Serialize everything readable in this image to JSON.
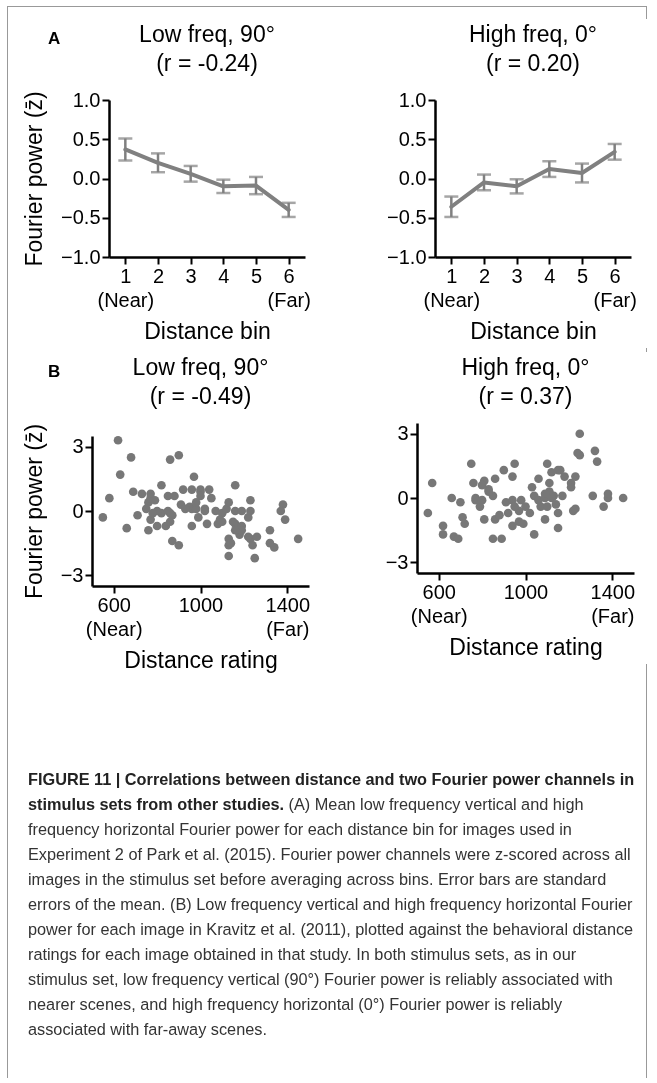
{
  "chart_data": [
    {
      "type": "line",
      "title": "Low freq, 90°",
      "subtitle": "(r = -0.24)",
      "xlabel": "Distance bin",
      "ylabel": "Fourier power (z̄)",
      "annotations": [
        "A"
      ],
      "color": "#808080",
      "x": [
        1,
        2,
        3,
        4,
        5,
        6
      ],
      "values": [
        0.37,
        0.2,
        0.06,
        -0.1,
        -0.09,
        -0.4
      ],
      "errors": [
        0.14,
        0.12,
        0.1,
        0.085,
        0.11,
        0.09
      ],
      "xlim": [
        0.5,
        6.5
      ],
      "xticks": [
        {
          "value": 1,
          "label": "1\n(Near)"
        },
        2,
        3,
        4,
        5,
        {
          "value": 6,
          "label": "6\n(Far)"
        }
      ],
      "ylim": [
        -1,
        1
      ],
      "yticks": [
        {
          "value": 1,
          "label": "1.0"
        },
        {
          "value": 0.5,
          "label": "0.5"
        },
        {
          "value": 0,
          "label": "0.0"
        },
        {
          "value": -0.5,
          "label": "−0.5"
        },
        {
          "value": -1,
          "label": "−1.0"
        }
      ]
    },
    {
      "type": "line",
      "title": "High freq, 0°",
      "subtitle": "(r = 0.20)",
      "xlabel": "Distance bin",
      "color": "#808080",
      "x": [
        1,
        2,
        3,
        4,
        5,
        6
      ],
      "values": [
        -0.36,
        -0.05,
        -0.1,
        0.12,
        0.07,
        0.34
      ],
      "errors": [
        0.13,
        0.1,
        0.09,
        0.1,
        0.12,
        0.1
      ],
      "xlim": [
        0.5,
        6.5
      ],
      "xticks": [
        {
          "value": 1,
          "label": "1\n(Near)"
        },
        2,
        3,
        4,
        5,
        {
          "value": 6,
          "label": "6\n(Far)"
        }
      ],
      "ylim": [
        -1,
        1
      ],
      "yticks": [
        {
          "value": 1,
          "label": "1.0"
        },
        {
          "value": 0.5,
          "label": "0.5"
        },
        {
          "value": 0,
          "label": "0.0"
        },
        {
          "value": -0.5,
          "label": "−0.5"
        },
        {
          "value": -1,
          "label": "−1.0"
        }
      ]
    },
    {
      "type": "scatter",
      "title": "Low freq, 90°",
      "subtitle": "(r = -0.49)",
      "xlabel": "Distance rating",
      "ylabel": "Fourier power (z̄)",
      "annotations": [
        "B"
      ],
      "color": "#777777",
      "x": [
        620,
        680,
        630,
        580,
        550,
        660,
        690,
        730,
        710,
        760,
        770,
        820,
        760,
        750,
        770,
        800,
        840,
        860,
        870,
        900,
        860,
        900,
        970,
        920,
        960,
        1000,
        1040,
        1050,
        1000,
        910,
        950,
        960,
        980,
        990,
        1020,
        960,
        1030,
        1080,
        1070,
        1100,
        1120,
        1130,
        1160,
        1160,
        1190,
        1230,
        1230,
        1220,
        1160,
        1190,
        1180,
        1130,
        1130,
        1140,
        1130,
        1230,
        1240,
        1190,
        1250,
        1260,
        1320,
        1320,
        1340,
        1380,
        1370,
        1390,
        1450,
        770,
        790,
        850,
        880,
        820,
        860,
        870,
        930,
        1020,
        1090,
        1100,
        1150,
        1160,
        1220,
        1000,
        980,
        800,
        780,
        850
      ],
      "values": [
        3.3,
        2.5,
        1.7,
        0.6,
        -0.3,
        -0.8,
        0.9,
        0.8,
        -0.2,
        -0.9,
        0.8,
        1.2,
        0.4,
        0.1,
        -0.4,
        -0.7,
        -0.7,
        -0.5,
        -1.4,
        -1.6,
        2.4,
        2.6,
        1.6,
        1.0,
        1.0,
        1.0,
        1.0,
        0.6,
        0.9,
        0.3,
        0.2,
        0.1,
        0.1,
        -0.3,
        0.1,
        -0.7,
        -0.6,
        -0.6,
        0,
        -0.1,
        0.1,
        0.4,
        1.2,
        0,
        0,
        0,
        0.5,
        -0.3,
        -0.6,
        -0.7,
        -1.1,
        -1.3,
        -1.6,
        -1.5,
        -2.1,
        -1.3,
        -1.6,
        -0.9,
        -2.2,
        -1.2,
        -0.9,
        -1.5,
        -1.7,
        0.3,
        0,
        -0.4,
        -1.3,
        0.6,
        0.5,
        0.7,
        0.7,
        -0.1,
        -0.1,
        -0.2,
        0.1,
        0,
        -0.4,
        -0.5,
        -0.5,
        -0.9,
        -1.2,
        0.7,
        0.4,
        0,
        -0.1,
        0
      ],
      "xlim": [
        500,
        1500
      ],
      "xticks": [
        {
          "value": 600,
          "label": "600\n(Near)"
        },
        {
          "value": 1000,
          "label": "1000"
        },
        {
          "value": 1400,
          "label": "1400\n(Far)"
        }
      ],
      "ylim": [
        -3.5,
        3.5
      ],
      "yticks": [
        {
          "value": 3,
          "label": "3"
        },
        {
          "value": 0,
          "label": "0"
        },
        {
          "value": -3,
          "label": "−3"
        }
      ]
    },
    {
      "type": "scatter",
      "title": "High freq, 0°",
      "subtitle": "(r = 0.37)",
      "xlabel": "Distance rating",
      "color": "#777777",
      "x": [
        1250,
        1240,
        1250,
        1320,
        1330,
        1100,
        950,
        750,
        900,
        940,
        760,
        810,
        860,
        830,
        800,
        850,
        570,
        660,
        700,
        550,
        620,
        620,
        670,
        690,
        710,
        720,
        770,
        790,
        770,
        810,
        860,
        880,
        850,
        890,
        910,
        940,
        920,
        940,
        970,
        990,
        980,
        1000,
        1020,
        970,
        1040,
        1090,
        1030,
        1060,
        1040,
        1060,
        1070,
        1090,
        1110,
        1120,
        1150,
        1160,
        1180,
        1210,
        1210,
        1230,
        1150,
        1150,
        1130,
        1120,
        1140,
        1170,
        1100,
        1220,
        1230,
        1310,
        1360,
        1380,
        1380,
        1450,
        830,
        800,
        950,
        1110,
        1090
      ],
      "values": [
        3.0,
        2.1,
        2.0,
        2.2,
        1.7,
        1.6,
        1.6,
        1.6,
        1.3,
        1.0,
        0.7,
        0.8,
        0.9,
        0.4,
        0.6,
        0.1,
        0.7,
        0,
        -0.2,
        -0.7,
        -1.3,
        -1.7,
        -1.8,
        -1.9,
        -0.9,
        -1.2,
        0,
        -0.4,
        -0.1,
        -1.0,
        -1.0,
        -0.8,
        -1.9,
        -1.9,
        -0.2,
        -0.1,
        -0.7,
        -1.3,
        -1.1,
        -1.2,
        -0.1,
        -0.4,
        -0.7,
        -0.6,
        -1.7,
        -1.0,
        0.5,
        0.9,
        0.1,
        -0.1,
        -0.4,
        0,
        0.7,
        1.2,
        1.3,
        1.3,
        1.0,
        0.7,
        0.5,
        1.0,
        -0.7,
        -1.4,
        0.1,
        0,
        -0.3,
        0.1,
        -0.4,
        -0.6,
        -0.5,
        0.1,
        -0.4,
        0,
        0.2,
        0,
        0.3,
        -0.1,
        -0.4,
        0.3,
        0.2
      ],
      "xlim": [
        500,
        1500
      ],
      "xticks": [
        {
          "value": 600,
          "label": "600\n(Near)"
        },
        {
          "value": 1000,
          "label": "1000"
        },
        {
          "value": 1400,
          "label": "1400\n(Far)"
        }
      ],
      "ylim": [
        -3.5,
        3.5
      ],
      "yticks": [
        {
          "value": 3,
          "label": "3"
        },
        {
          "value": 0,
          "label": "0"
        },
        {
          "value": -3,
          "label": "−3"
        }
      ]
    },
    {
      "type": "other",
      "title": "FIGURE 11 | Correlations between distance and two Fourier power channels in stimulus sets from other studies.",
      "annotations": [
        "(A) Mean low frequency vertical and high frequency horizontal Fourier power for each distance bin for images used in Experiment 2 of Park et al. (2015). Fourier power channels were z-scored across all images in the stimulus set before averaging across bins. Error bars are standard errors of the mean.",
        "(B) Low frequency vertical and high frequency horizontal Fourier power for each image in Kravitz et al. (2011), plotted against the behavioral distance ratings for each image obtained in that study. In both stimulus sets, as in our stimulus set, low frequency vertical (90°) Fourier power is reliably associated with nearer scenes, and high frequency horizontal (0°) Fourier power is reliably associated with far-away scenes."
      ]
    }
  ]
}
